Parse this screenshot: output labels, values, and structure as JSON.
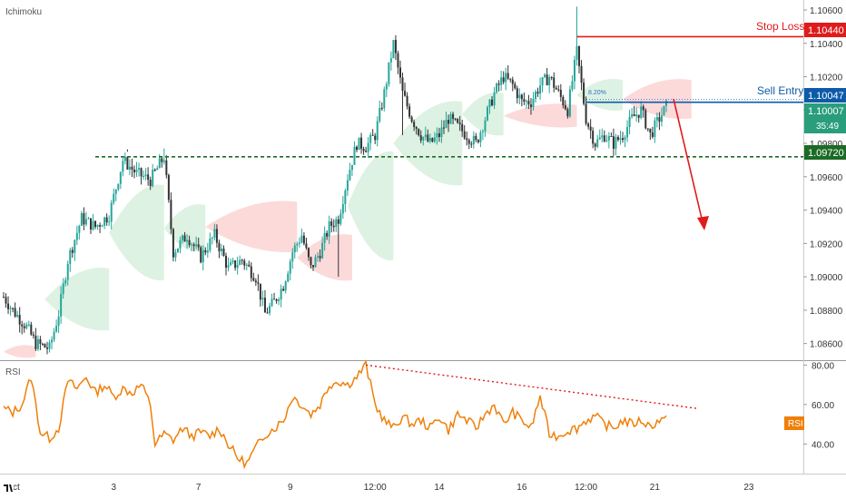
{
  "chart_data": [
    {
      "type": "candlestick",
      "indicator_label": "Ichimoku",
      "ylim": [
        1.085,
        1.1066
      ],
      "yticks": [
        1.086,
        1.088,
        1.09,
        1.092,
        1.094,
        1.096,
        1.098,
        1.1,
        1.102,
        1.104,
        1.106
      ],
      "ytick_labels": [
        "1.08600",
        "1.08800",
        "1.09000",
        "1.09200",
        "1.09400",
        "1.09600",
        "1.09800",
        "1.10000",
        "1.10200",
        "1.10400",
        "1.10600"
      ],
      "x_labels": [
        "Oct",
        "3",
        "7",
        "9",
        "12:00",
        "14",
        "16",
        "12:00",
        "21",
        "23"
      ],
      "price_anchors": [
        [
          0,
          1.0888
        ],
        [
          4,
          1.088
        ],
        [
          10,
          1.087
        ],
        [
          14,
          1.086
        ],
        [
          20,
          1.0857
        ],
        [
          24,
          1.0878
        ],
        [
          28,
          1.091
        ],
        [
          34,
          1.0935
        ],
        [
          40,
          1.093
        ],
        [
          46,
          1.0937
        ],
        [
          52,
          1.097
        ],
        [
          58,
          1.0962
        ],
        [
          64,
          1.0958
        ],
        [
          70,
          1.0972
        ],
        [
          74,
          1.0915
        ],
        [
          80,
          1.0925
        ],
        [
          86,
          1.0912
        ],
        [
          92,
          1.0925
        ],
        [
          98,
          1.0905
        ],
        [
          104,
          1.091
        ],
        [
          110,
          1.09
        ],
        [
          114,
          1.0878
        ],
        [
          118,
          1.0885
        ],
        [
          122,
          1.0895
        ],
        [
          126,
          1.0915
        ],
        [
          130,
          1.0925
        ],
        [
          134,
          1.0905
        ],
        [
          138,
          1.0915
        ],
        [
          142,
          1.093
        ],
        [
          146,
          1.0935
        ],
        [
          150,
          1.096
        ],
        [
          154,
          1.098
        ],
        [
          158,
          1.0978
        ],
        [
          162,
          1.0985
        ],
        [
          166,
          1.101
        ],
        [
          170,
          1.104
        ],
        [
          174,
          1.101
        ],
        [
          178,
          1.0995
        ],
        [
          182,
          1.0985
        ],
        [
          186,
          1.098
        ],
        [
          190,
          1.0985
        ],
        [
          194,
          1.0995
        ],
        [
          198,
          1.099
        ],
        [
          202,
          1.0985
        ],
        [
          206,
          1.098
        ],
        [
          210,
          1.0995
        ],
        [
          214,
          1.101
        ],
        [
          218,
          1.102
        ],
        [
          222,
          1.1015
        ],
        [
          226,
          1.1005
        ],
        [
          230,
          1.1005
        ],
        [
          234,
          1.1015
        ],
        [
          238,
          1.102
        ],
        [
          242,
          1.101
        ],
        [
          246,
          1.1
        ],
        [
          250,
          1.1035
        ],
        [
          254,
          1.0995
        ],
        [
          258,
          1.098
        ],
        [
          262,
          1.0985
        ],
        [
          266,
          1.098
        ],
        [
          270,
          1.0985
        ],
        [
          274,
          1.0995
        ],
        [
          278,
          1.1
        ],
        [
          282,
          1.0985
        ],
        [
          286,
          1.0995
        ],
        [
          289,
          1.1002
        ]
      ],
      "candle_count": 290,
      "levels": {
        "stop_loss": {
          "label": "Stop Loss",
          "value": 1.1044,
          "value_label": "1.10440",
          "color": "#e01b1b"
        },
        "sell_entry": {
          "label": "Sell Entry",
          "value": 1.10047,
          "value_label": "1.10047",
          "color": "#0d5ba8"
        },
        "support": {
          "value": 1.0972,
          "value_label": "1.09720",
          "color": "#1c6b25"
        },
        "fib_label": "8.20%"
      },
      "current_price": {
        "value": 1.10007,
        "value_label": "1.10007",
        "countdown": "35:49",
        "color": "#2a9d7c"
      },
      "colors": {
        "up": "#26a69a",
        "down": "#333333",
        "cloud_bull": "#d7f0dd",
        "cloud_bear": "#fbd3d3"
      }
    },
    {
      "type": "line",
      "indicator_label": "RSI",
      "ylim": [
        25,
        82
      ],
      "yticks": [
        40,
        60,
        80
      ],
      "ytick_labels": [
        "40.00",
        "60.00",
        "80.00"
      ],
      "rsi_anchors": [
        [
          0,
          58
        ],
        [
          4,
          56
        ],
        [
          8,
          60
        ],
        [
          12,
          74
        ],
        [
          16,
          46
        ],
        [
          20,
          43
        ],
        [
          24,
          48
        ],
        [
          28,
          72
        ],
        [
          32,
          68
        ],
        [
          36,
          74
        ],
        [
          40,
          66
        ],
        [
          44,
          70
        ],
        [
          48,
          64
        ],
        [
          52,
          68
        ],
        [
          56,
          66
        ],
        [
          60,
          70
        ],
        [
          64,
          60
        ],
        [
          66,
          40
        ],
        [
          70,
          45
        ],
        [
          74,
          42
        ],
        [
          78,
          48
        ],
        [
          82,
          44
        ],
        [
          86,
          46
        ],
        [
          90,
          44
        ],
        [
          94,
          48
        ],
        [
          98,
          40
        ],
        [
          102,
          33
        ],
        [
          106,
          30
        ],
        [
          110,
          38
        ],
        [
          114,
          45
        ],
        [
          118,
          48
        ],
        [
          122,
          52
        ],
        [
          126,
          64
        ],
        [
          130,
          60
        ],
        [
          134,
          55
        ],
        [
          138,
          60
        ],
        [
          142,
          70
        ],
        [
          146,
          72
        ],
        [
          150,
          70
        ],
        [
          154,
          74
        ],
        [
          158,
          80
        ],
        [
          162,
          60
        ],
        [
          166,
          52
        ],
        [
          170,
          48
        ],
        [
          174,
          54
        ],
        [
          178,
          50
        ],
        [
          182,
          52
        ],
        [
          186,
          48
        ],
        [
          190,
          54
        ],
        [
          194,
          47
        ],
        [
          198,
          55
        ],
        [
          202,
          52
        ],
        [
          206,
          48
        ],
        [
          210,
          55
        ],
        [
          214,
          60
        ],
        [
          218,
          50
        ],
        [
          222,
          56
        ],
        [
          226,
          52
        ],
        [
          230,
          48
        ],
        [
          234,
          64
        ],
        [
          238,
          45
        ],
        [
          242,
          44
        ],
        [
          246,
          47
        ],
        [
          250,
          48
        ],
        [
          254,
          52
        ],
        [
          258,
          54
        ],
        [
          262,
          50
        ],
        [
          266,
          48
        ],
        [
          270,
          52
        ],
        [
          274,
          50
        ],
        [
          278,
          52
        ],
        [
          282,
          49
        ],
        [
          286,
          52
        ],
        [
          289,
          52
        ]
      ],
      "trendline": {
        "from": [
          158,
          80
        ],
        "to": [
          290,
          58
        ]
      },
      "current_value_label": "RSI",
      "color": "#f07f09"
    }
  ]
}
